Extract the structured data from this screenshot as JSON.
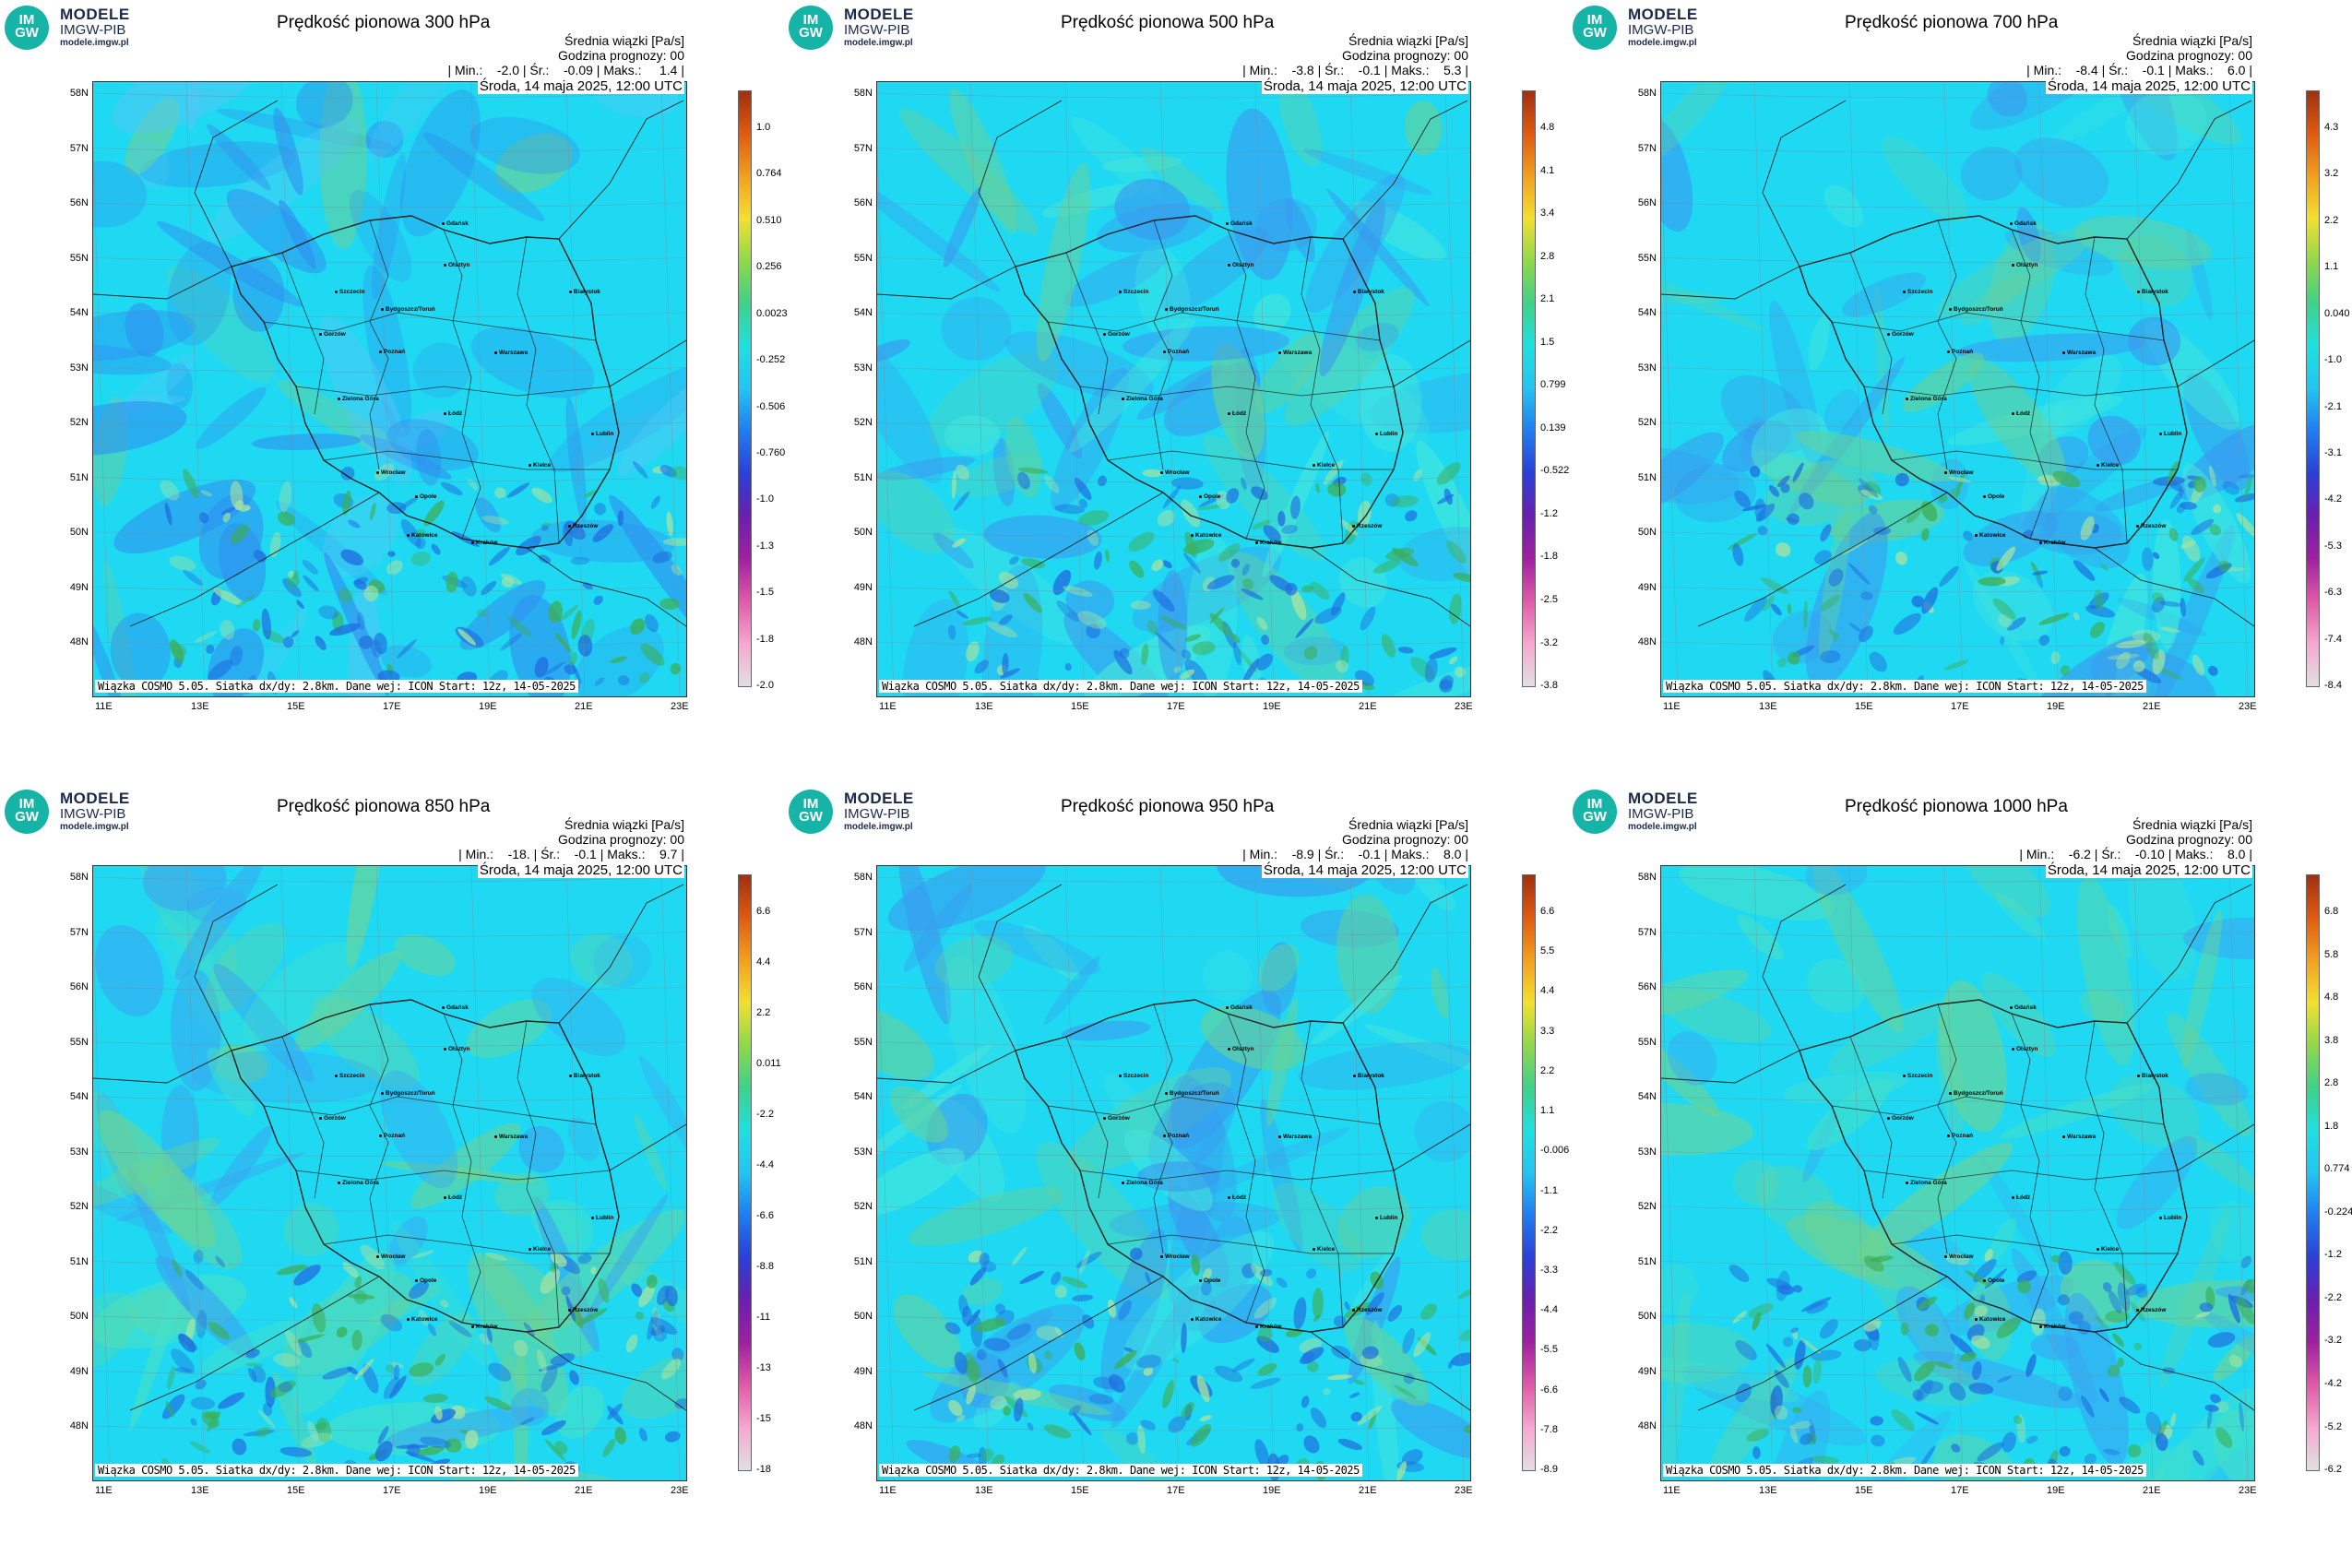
{
  "logo": {
    "name": "MODELE",
    "org": "IMGW-PIB",
    "url": "modele.imgw.pl",
    "mark_top": "IM",
    "mark_bottom": "GW"
  },
  "common": {
    "subtitle": "Średnia wiązki [Pa/s]",
    "forecast_hour": "Godzina prognozy: 00",
    "date": "Środa, 14 maja 2025, 12:00 UTC",
    "credit": "Wiązka COSMO 5.05. Siatka dx/dy: 2.8km. Dane wej: ICON Start: 12z, 14-05-2025",
    "lat_labels": [
      "58N",
      "57N",
      "56N",
      "55N",
      "54N",
      "53N",
      "52N",
      "51N",
      "50N",
      "49N",
      "48N"
    ],
    "lon_labels": [
      "11E",
      "13E",
      "15E",
      "17E",
      "19E",
      "21E",
      "23E"
    ]
  },
  "panels": [
    {
      "title": "Prędkość pionowa 300 hPa",
      "stats": "| Min.:    -2.0 | Śr.:    -0.09 | Maks.:     1.4 |",
      "colorbar": [
        "1.0",
        "0.764",
        "0.510",
        "0.256",
        "0.0023",
        "-0.252",
        "-0.506",
        "-0.760",
        "-1.0",
        "-1.3",
        "-1.5",
        "-1.8",
        "-2.0"
      ],
      "tone": "cool"
    },
    {
      "title": "Prędkość pionowa 500 hPa",
      "stats": "| Min.:    -3.8 | Śr.:    -0.1 | Maks.:    5.3 |",
      "colorbar": [
        "4.8",
        "4.1",
        "3.4",
        "2.8",
        "2.1",
        "1.5",
        "0.799",
        "0.139",
        "-0.522",
        "-1.2",
        "-1.8",
        "-2.5",
        "-3.2",
        "-3.8"
      ],
      "tone": "mid"
    },
    {
      "title": "Prędkość pionowa 700 hPa",
      "stats": "| Min.:    -8.4 | Śr.:    -0.1 | Maks.:    6.0 |",
      "colorbar": [
        "4.3",
        "3.2",
        "2.2",
        "1.1",
        "0.040",
        "-1.0",
        "-2.1",
        "-3.1",
        "-4.2",
        "-5.3",
        "-6.3",
        "-7.4",
        "-8.4"
      ],
      "tone": "mid"
    },
    {
      "title": "Prędkość pionowa 850 hPa",
      "stats": "| Min.:    -18. | Śr.:    -0.1 | Maks.:    9.7 |",
      "colorbar": [
        "6.6",
        "4.4",
        "2.2",
        "0.011",
        "-2.2",
        "-4.4",
        "-6.6",
        "-8.8",
        "-11",
        "-13",
        "-15",
        "-18"
      ],
      "tone": "warm"
    },
    {
      "title": "Prędkość pionowa 950 hPa",
      "stats": "| Min.:    -8.9 | Śr.:    -0.1 | Maks.:    8.0 |",
      "colorbar": [
        "6.6",
        "5.5",
        "4.4",
        "3.3",
        "2.2",
        "1.1",
        "-0.006",
        "-1.1",
        "-2.2",
        "-3.3",
        "-4.4",
        "-5.5",
        "-6.6",
        "-7.8",
        "-8.9"
      ],
      "tone": "mid"
    },
    {
      "title": "Prędkość pionowa 1000 hPa",
      "stats": "| Min.:    -6.2 | Śr.:    -0.10 | Maks.:    8.0 |",
      "colorbar": [
        "6.8",
        "5.8",
        "4.8",
        "3.8",
        "2.8",
        "1.8",
        "0.774",
        "-0.224",
        "-1.2",
        "-2.2",
        "-3.2",
        "-4.2",
        "-5.2",
        "-6.2"
      ],
      "tone": "warm"
    }
  ],
  "cities": [
    "Gdańsk",
    "Olsztyn",
    "Szczecin",
    "Bydgoszcz/Toruń",
    "Białystok",
    "Gorzów",
    "Poznań",
    "Warszawa",
    "Zielona Góra",
    "Łódź",
    "Lublin",
    "Wrocław",
    "Kielce",
    "Opole",
    "Katowice",
    "Kraków",
    "Rzeszów"
  ],
  "colors": {
    "field": "#1fd9f2",
    "cool": "#3b9cf0",
    "warm": "#5fd08a",
    "border": "#222222"
  }
}
